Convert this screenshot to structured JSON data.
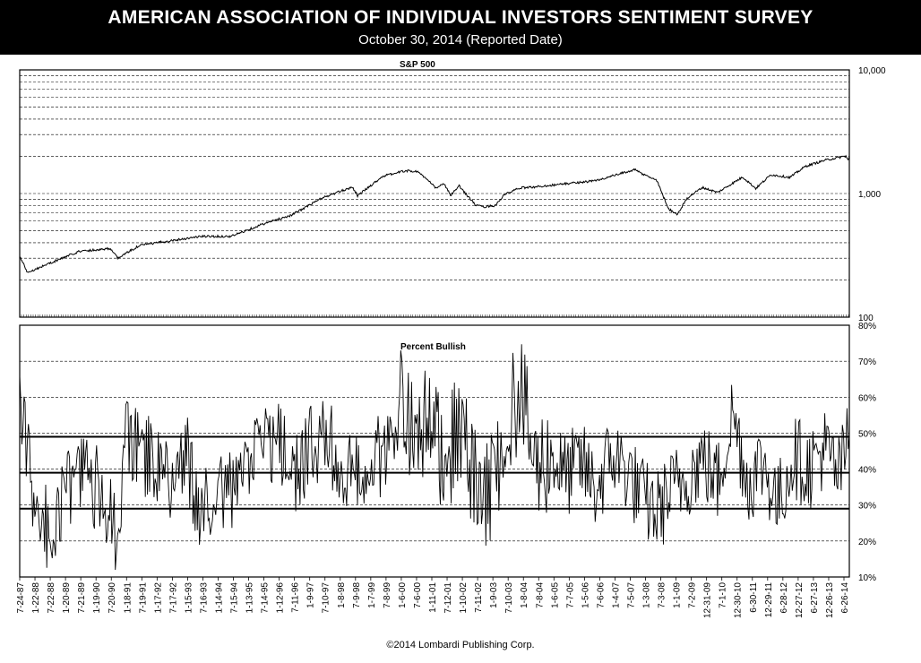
{
  "header": {
    "title": "AMERICAN ASSOCIATION OF INDIVIDUAL INVESTORS SENTIMENT SURVEY",
    "subtitle": "October 30, 2014 (Reported Date)"
  },
  "footer": "©2014 Lombardi Publishing Corp.",
  "chart_data": [
    {
      "type": "line",
      "title": "S&P 500",
      "y_scale": "log",
      "ylim": [
        100,
        10000
      ],
      "y_ticks": [
        "100",
        "1,000",
        "10,000"
      ],
      "grid": "dashed horizontal lines at log decades",
      "series": [
        {
          "values": [
            [
              "7-24-87",
              310
            ],
            [
              "10-26-87",
              230
            ],
            [
              "7-1-88",
              270
            ],
            [
              "7-1-89",
              340
            ],
            [
              "7-16-90",
              360
            ],
            [
              "10-11-90",
              300
            ],
            [
              "7-1-91",
              380
            ],
            [
              "7-1-92",
              415
            ],
            [
              "7-1-93",
              450
            ],
            [
              "7-1-94",
              450
            ],
            [
              "7-1-95",
              560
            ],
            [
              "7-1-96",
              670
            ],
            [
              "7-1-97",
              920
            ],
            [
              "7-1-98",
              1130
            ],
            [
              "8-31-98",
              960
            ],
            [
              "7-1-99",
              1380
            ],
            [
              "3-24-00",
              1530
            ],
            [
              "9-1-00",
              1500
            ],
            [
              "4-4-01",
              1100
            ],
            [
              "7-1-01",
              1210
            ],
            [
              "9-21-01",
              965
            ],
            [
              "1-1-02",
              1150
            ],
            [
              "7-23-02",
              800
            ],
            [
              "10-9-02",
              780
            ],
            [
              "3-11-03",
              800
            ],
            [
              "7-1-03",
              980
            ],
            [
              "1-1-04",
              1110
            ],
            [
              "7-1-04",
              1130
            ],
            [
              "7-1-05",
              1200
            ],
            [
              "7-1-06",
              1270
            ],
            [
              "10-9-07",
              1560
            ],
            [
              "1-1-08",
              1450
            ],
            [
              "7-1-08",
              1280
            ],
            [
              "11-20-08",
              750
            ],
            [
              "3-9-09",
              680
            ],
            [
              "7-1-09",
              920
            ],
            [
              "1-1-10",
              1120
            ],
            [
              "7-2-10",
              1020
            ],
            [
              "4-29-11",
              1360
            ],
            [
              "10-3-11",
              1100
            ],
            [
              "4-2-12",
              1420
            ],
            [
              "11-15-12",
              1350
            ],
            [
              "5-21-13",
              1660
            ],
            [
              "12-31-13",
              1850
            ],
            [
              "6-30-14",
              1960
            ],
            [
              "9-18-14",
              2010
            ],
            [
              "10-15-14",
              1860
            ],
            [
              "10-30-14",
              1990
            ]
          ]
        }
      ]
    },
    {
      "type": "line",
      "title": "Percent Bullish",
      "ylim": [
        10,
        80
      ],
      "y_ticks": [
        "10%",
        "20%",
        "30%",
        "40%",
        "50%",
        "60%",
        "70%",
        "80%"
      ],
      "reference_lines": [
        29,
        39,
        49
      ],
      "x_tick_labels": [
        "7-24-87",
        "1-22-88",
        "7-22-88",
        "1-20-89",
        "7-21-89",
        "1-19-90",
        "7-20-90",
        "1-18-91",
        "7-19-91",
        "1-17-92",
        "7-17-92",
        "1-15-93",
        "7-16-93",
        "1-14-94",
        "7-15-94",
        "1-13-95",
        "7-14-95",
        "1-12-96",
        "7-11-96",
        "1-9-97",
        "7-10-97",
        "1-8-98",
        "7-9-98",
        "1-7-99",
        "7-8-99",
        "1-6-00",
        "7-6-00",
        "1-11-01",
        "7-12-01",
        "1-10-02",
        "7-11-02",
        "1-9-03",
        "7-10-03",
        "1-8-04",
        "7-8-04",
        "1-6-05",
        "7-7-05",
        "1-5-06",
        "7-6-06",
        "1-4-07",
        "7-5-07",
        "1-3-08",
        "7-3-08",
        "1-1-09",
        "7-2-09",
        "12-31-09",
        "7-1-10",
        "12-30-10",
        "6-30-11",
        "12-29-11",
        "6-28-12",
        "12-27-12",
        "6-27-13",
        "12-26-13",
        "6-26-14"
      ],
      "series": [
        {
          "name": "Percent Bullish",
          "values": [
            [
              "7-24-87",
              58
            ],
            [
              "1-22-88",
              30
            ],
            [
              "7-22-88",
              22
            ],
            [
              "1-20-89",
              33
            ],
            [
              "7-21-89",
              40
            ],
            [
              "1-19-90",
              35
            ],
            [
              "7-20-90",
              30
            ],
            [
              "10-11-90",
              13
            ],
            [
              "1-18-91",
              48
            ],
            [
              "7-19-91",
              45
            ],
            [
              "1-17-92",
              42
            ],
            [
              "7-17-92",
              36
            ],
            [
              "1-15-93",
              44
            ],
            [
              "7-16-93",
              26
            ],
            [
              "1-14-94",
              38
            ],
            [
              "7-15-94",
              32
            ],
            [
              "1-13-95",
              40
            ],
            [
              "7-14-95",
              45
            ],
            [
              "1-12-96",
              48
            ],
            [
              "7-11-96",
              38
            ],
            [
              "1-9-97",
              45
            ],
            [
              "7-10-97",
              48
            ],
            [
              "1-8-98",
              44
            ],
            [
              "7-9-98",
              37
            ],
            [
              "1-7-99",
              42
            ],
            [
              "7-8-99",
              44
            ],
            [
              "1-6-00",
              58
            ],
            [
              "7-6-00",
              50
            ],
            [
              "1-11-01",
              52
            ],
            [
              "7-12-01",
              44
            ],
            [
              "1-10-02",
              50
            ],
            [
              "7-11-02",
              35
            ],
            [
              "1-9-03",
              33
            ],
            [
              "7-10-03",
              52
            ],
            [
              "1-8-04",
              62
            ],
            [
              "7-8-04",
              40
            ],
            [
              "1-6-05",
              44
            ],
            [
              "7-7-05",
              38
            ],
            [
              "1-5-06",
              42
            ],
            [
              "7-6-06",
              34
            ],
            [
              "1-4-07",
              44
            ],
            [
              "7-5-07",
              40
            ],
            [
              "1-3-08",
              32
            ],
            [
              "7-3-08",
              28
            ],
            [
              "1-1-09",
              34
            ],
            [
              "7-2-09",
              38
            ],
            [
              "12-31-09",
              43
            ],
            [
              "7-1-10",
              36
            ],
            [
              "12-30-10",
              56
            ],
            [
              "6-30-11",
              36
            ],
            [
              "12-29-11",
              42
            ],
            [
              "6-28-12",
              30
            ],
            [
              "12-27-12",
              44
            ],
            [
              "6-27-13",
              40
            ],
            [
              "12-26-13",
              46
            ],
            [
              "6-26-14",
              38
            ],
            [
              "10-30-14",
              49
            ]
          ]
        }
      ]
    }
  ]
}
